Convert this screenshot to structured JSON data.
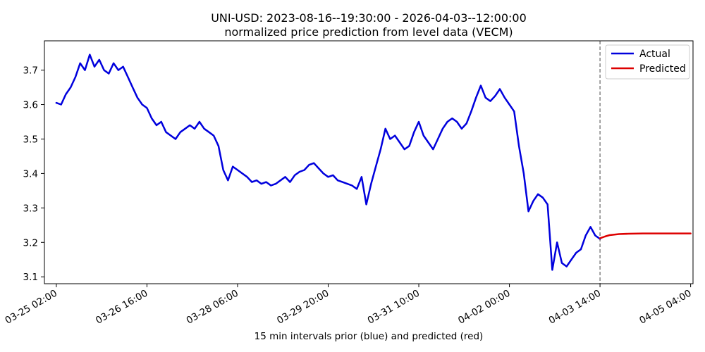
{
  "chart_data": {
    "type": "line",
    "title": "UNI-USD: 2023-08-16--19:30:00 - 2026-04-03--12:00:00",
    "subtitle": "normalized price prediction from level data (VECM)",
    "xlabel": "15 min intervals prior (blue) and predicted (red)",
    "ylabel": "",
    "ylim": [
      3.08,
      3.785
    ],
    "y_ticks": [
      3.1,
      3.2,
      3.3,
      3.4,
      3.5,
      3.6,
      3.7
    ],
    "x_range": [
      "03-24 21:00",
      "04-05 05:00"
    ],
    "x_ticks": [
      "03-25 02:00",
      "03-26 16:00",
      "03-28 06:00",
      "03-29 20:00",
      "03-31 10:00",
      "04-02 00:00",
      "04-03 14:00",
      "04-05 04:00"
    ],
    "forecast_start": "04-03 14:00",
    "grid": false,
    "legend_position": "top-right",
    "series": [
      {
        "name": "Actual",
        "color": "#0000dd",
        "points": [
          [
            "03-25 02:00",
            3.605
          ],
          [
            "03-25 04:00",
            3.6
          ],
          [
            "03-25 06:00",
            3.63
          ],
          [
            "03-25 08:00",
            3.65
          ],
          [
            "03-25 10:00",
            3.68
          ],
          [
            "03-25 12:00",
            3.72
          ],
          [
            "03-25 14:00",
            3.7
          ],
          [
            "03-25 16:00",
            3.745
          ],
          [
            "03-25 18:00",
            3.71
          ],
          [
            "03-25 20:00",
            3.73
          ],
          [
            "03-25 22:00",
            3.7
          ],
          [
            "03-26 00:00",
            3.69
          ],
          [
            "03-26 02:00",
            3.72
          ],
          [
            "03-26 04:00",
            3.7
          ],
          [
            "03-26 06:00",
            3.71
          ],
          [
            "03-26 08:00",
            3.68
          ],
          [
            "03-26 10:00",
            3.65
          ],
          [
            "03-26 12:00",
            3.62
          ],
          [
            "03-26 14:00",
            3.6
          ],
          [
            "03-26 16:00",
            3.59
          ],
          [
            "03-26 18:00",
            3.56
          ],
          [
            "03-26 20:00",
            3.54
          ],
          [
            "03-26 22:00",
            3.55
          ],
          [
            "03-27 00:00",
            3.52
          ],
          [
            "03-27 02:00",
            3.51
          ],
          [
            "03-27 04:00",
            3.5
          ],
          [
            "03-27 06:00",
            3.52
          ],
          [
            "03-27 08:00",
            3.53
          ],
          [
            "03-27 10:00",
            3.54
          ],
          [
            "03-27 12:00",
            3.53
          ],
          [
            "03-27 14:00",
            3.55
          ],
          [
            "03-27 16:00",
            3.53
          ],
          [
            "03-27 18:00",
            3.52
          ],
          [
            "03-27 20:00",
            3.51
          ],
          [
            "03-27 22:00",
            3.48
          ],
          [
            "03-28 00:00",
            3.41
          ],
          [
            "03-28 02:00",
            3.38
          ],
          [
            "03-28 04:00",
            3.42
          ],
          [
            "03-28 06:00",
            3.41
          ],
          [
            "03-28 08:00",
            3.4
          ],
          [
            "03-28 10:00",
            3.39
          ],
          [
            "03-28 12:00",
            3.375
          ],
          [
            "03-28 14:00",
            3.38
          ],
          [
            "03-28 16:00",
            3.37
          ],
          [
            "03-28 18:00",
            3.375
          ],
          [
            "03-28 20:00",
            3.365
          ],
          [
            "03-28 22:00",
            3.37
          ],
          [
            "03-29 00:00",
            3.38
          ],
          [
            "03-29 02:00",
            3.39
          ],
          [
            "03-29 04:00",
            3.375
          ],
          [
            "03-29 06:00",
            3.395
          ],
          [
            "03-29 08:00",
            3.405
          ],
          [
            "03-29 10:00",
            3.41
          ],
          [
            "03-29 12:00",
            3.425
          ],
          [
            "03-29 14:00",
            3.43
          ],
          [
            "03-29 16:00",
            3.415
          ],
          [
            "03-29 18:00",
            3.4
          ],
          [
            "03-29 20:00",
            3.39
          ],
          [
            "03-29 22:00",
            3.395
          ],
          [
            "03-30 00:00",
            3.38
          ],
          [
            "03-30 02:00",
            3.375
          ],
          [
            "03-30 04:00",
            3.37
          ],
          [
            "03-30 06:00",
            3.365
          ],
          [
            "03-30 08:00",
            3.355
          ],
          [
            "03-30 10:00",
            3.39
          ],
          [
            "03-30 12:00",
            3.31
          ],
          [
            "03-30 14:00",
            3.37
          ],
          [
            "03-30 16:00",
            3.42
          ],
          [
            "03-30 18:00",
            3.47
          ],
          [
            "03-30 20:00",
            3.53
          ],
          [
            "03-30 22:00",
            3.5
          ],
          [
            "03-31 00:00",
            3.51
          ],
          [
            "03-31 02:00",
            3.49
          ],
          [
            "03-31 04:00",
            3.47
          ],
          [
            "03-31 06:00",
            3.48
          ],
          [
            "03-31 08:00",
            3.52
          ],
          [
            "03-31 10:00",
            3.55
          ],
          [
            "03-31 12:00",
            3.51
          ],
          [
            "03-31 14:00",
            3.49
          ],
          [
            "03-31 16:00",
            3.47
          ],
          [
            "03-31 18:00",
            3.5
          ],
          [
            "03-31 20:00",
            3.53
          ],
          [
            "03-31 22:00",
            3.55
          ],
          [
            "04-01 00:00",
            3.56
          ],
          [
            "04-01 02:00",
            3.55
          ],
          [
            "04-01 04:00",
            3.53
          ],
          [
            "04-01 06:00",
            3.545
          ],
          [
            "04-01 08:00",
            3.58
          ],
          [
            "04-01 10:00",
            3.62
          ],
          [
            "04-01 12:00",
            3.655
          ],
          [
            "04-01 14:00",
            3.62
          ],
          [
            "04-01 16:00",
            3.61
          ],
          [
            "04-01 18:00",
            3.625
          ],
          [
            "04-01 20:00",
            3.645
          ],
          [
            "04-01 22:00",
            3.62
          ],
          [
            "04-02 00:00",
            3.6
          ],
          [
            "04-02 02:00",
            3.58
          ],
          [
            "04-02 04:00",
            3.48
          ],
          [
            "04-02 06:00",
            3.4
          ],
          [
            "04-02 08:00",
            3.29
          ],
          [
            "04-02 10:00",
            3.32
          ],
          [
            "04-02 12:00",
            3.34
          ],
          [
            "04-02 14:00",
            3.33
          ],
          [
            "04-02 16:00",
            3.31
          ],
          [
            "04-02 18:00",
            3.12
          ],
          [
            "04-02 20:00",
            3.2
          ],
          [
            "04-02 22:00",
            3.14
          ],
          [
            "04-03 00:00",
            3.13
          ],
          [
            "04-03 02:00",
            3.15
          ],
          [
            "04-03 04:00",
            3.17
          ],
          [
            "04-03 06:00",
            3.18
          ],
          [
            "04-03 08:00",
            3.22
          ],
          [
            "04-03 10:00",
            3.245
          ],
          [
            "04-03 12:00",
            3.22
          ],
          [
            "04-03 14:00",
            3.21
          ]
        ]
      },
      {
        "name": "Predicted",
        "color": "#dd0000",
        "points": [
          [
            "04-03 14:00",
            3.212
          ],
          [
            "04-03 16:00",
            3.217
          ],
          [
            "04-03 18:00",
            3.221
          ],
          [
            "04-03 22:00",
            3.224
          ],
          [
            "04-04 02:00",
            3.225
          ],
          [
            "04-04 08:00",
            3.226
          ],
          [
            "04-04 16:00",
            3.226
          ],
          [
            "04-05 04:00",
            3.226
          ]
        ]
      }
    ]
  }
}
